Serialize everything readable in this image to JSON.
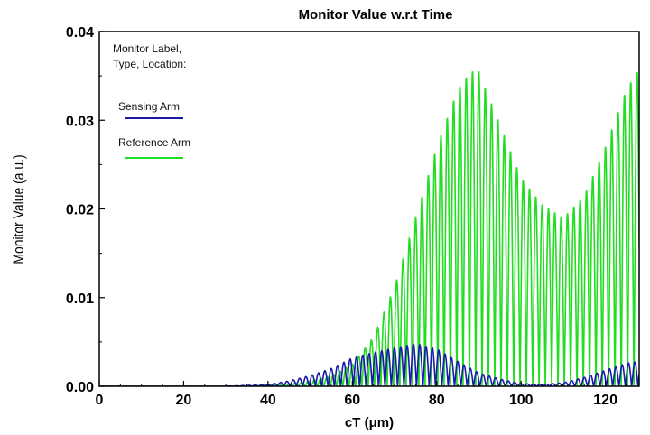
{
  "chart_data": {
    "type": "line",
    "title": "Monitor Value w.r.t Time",
    "xlabel": "cT (μm)",
    "ylabel": "Monitor Value (a.u.)",
    "xlim": [
      0,
      128
    ],
    "ylim": [
      0,
      0.04
    ],
    "x_ticks": [
      0,
      20,
      40,
      60,
      80,
      100,
      120
    ],
    "x_tick_labels": [
      "0",
      "20",
      "40",
      "60",
      "80",
      "100",
      "120"
    ],
    "y_ticks": [
      0,
      0.01,
      0.02,
      0.03,
      0.04
    ],
    "y_tick_labels": [
      "0.00",
      "0.01",
      "0.02",
      "0.03",
      "0.04"
    ],
    "grid": false,
    "legend": {
      "title_lines": [
        "Monitor Label,",
        "Type, Location:"
      ],
      "placement": "top-left"
    },
    "oscillation_period": 1.5,
    "series": [
      {
        "name": "Sensing Arm",
        "color": "#1a1aaa",
        "envelope_x": [
          0,
          30,
          40,
          45,
          50,
          55,
          60,
          65,
          70,
          75,
          80,
          85,
          90,
          95,
          100,
          105,
          110,
          115,
          120,
          125,
          128
        ],
        "envelope_y": [
          0,
          0,
          0.0002,
          0.0006,
          0.0012,
          0.002,
          0.0032,
          0.0038,
          0.0043,
          0.0048,
          0.0042,
          0.0028,
          0.0015,
          0.0008,
          0.0003,
          0.0002,
          0.0004,
          0.001,
          0.0018,
          0.0026,
          0.0028
        ]
      },
      {
        "name": "Reference Arm",
        "color": "#22dd22",
        "envelope_x": [
          0,
          35,
          45,
          50,
          55,
          60,
          65,
          70,
          75,
          80,
          85,
          88,
          90,
          95,
          100,
          105,
          110,
          115,
          120,
          125,
          128
        ],
        "envelope_y": [
          0,
          0,
          0.0003,
          0.0006,
          0.0012,
          0.0025,
          0.0055,
          0.0112,
          0.019,
          0.027,
          0.0335,
          0.0355,
          0.0355,
          0.0295,
          0.0235,
          0.0205,
          0.019,
          0.0215,
          0.027,
          0.0335,
          0.0358
        ]
      }
    ]
  }
}
